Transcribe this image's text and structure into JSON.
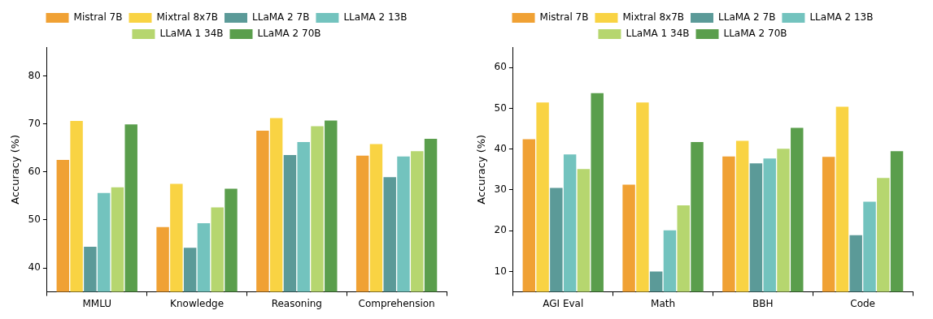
{
  "chart_data": [
    {
      "type": "bar",
      "y_label": "Accuracy (%)",
      "categories": [
        "MMLU",
        "Knowledge",
        "Reasoning",
        "Comprehension"
      ],
      "series": [
        {
          "name": "Mistral 7B",
          "color": "#f0a134",
          "values": [
            62.5,
            48.5,
            68.6,
            63.4
          ]
        },
        {
          "name": "Mixtral 8x7B",
          "color": "#f9d343",
          "values": [
            70.6,
            57.5,
            71.2,
            65.8
          ]
        },
        {
          "name": "LLaMA 2 7B",
          "color": "#5b9a98",
          "values": [
            44.4,
            44.2,
            63.5,
            58.9
          ]
        },
        {
          "name": "LLaMA 2 13B",
          "color": "#73c3be",
          "values": [
            55.6,
            49.3,
            66.2,
            63.2
          ]
        },
        {
          "name": "LLaMA 1 34B",
          "color": "#b6d66f",
          "values": [
            56.8,
            52.6,
            69.5,
            64.3
          ]
        },
        {
          "name": "LLaMA 2 70B",
          "color": "#5a9e4c",
          "values": [
            69.9,
            56.5,
            70.7,
            66.9
          ]
        }
      ],
      "ylim": [
        35,
        86
      ],
      "yticks": [
        40,
        50,
        60,
        70,
        80
      ],
      "grid": false,
      "legend": "top"
    },
    {
      "type": "bar",
      "y_label": "Accuracy (%)",
      "categories": [
        "AGI Eval",
        "Math",
        "BBH",
        "Code"
      ],
      "series": [
        {
          "name": "Mistral 7B",
          "color": "#f0a134",
          "values": [
            42.4,
            31.3,
            38.2,
            38.1
          ]
        },
        {
          "name": "Mixtral 8x7B",
          "color": "#f9d343",
          "values": [
            51.4,
            51.4,
            42.0,
            50.4
          ]
        },
        {
          "name": "LLaMA 2 7B",
          "color": "#5b9a98",
          "values": [
            30.5,
            10.0,
            36.5,
            18.9
          ]
        },
        {
          "name": "LLaMA 2 13B",
          "color": "#73c3be",
          "values": [
            38.7,
            20.1,
            37.7,
            27.1
          ]
        },
        {
          "name": "LLaMA 1 34B",
          "color": "#b6d66f",
          "values": [
            35.1,
            26.2,
            40.1,
            32.9
          ]
        },
        {
          "name": "LLaMA 2 70B",
          "color": "#5a9e4c",
          "values": [
            53.7,
            41.7,
            45.2,
            39.5
          ]
        }
      ],
      "ylim": [
        5,
        65
      ],
      "yticks": [
        10,
        20,
        30,
        40,
        50,
        60
      ],
      "grid": false,
      "legend": "top"
    }
  ]
}
